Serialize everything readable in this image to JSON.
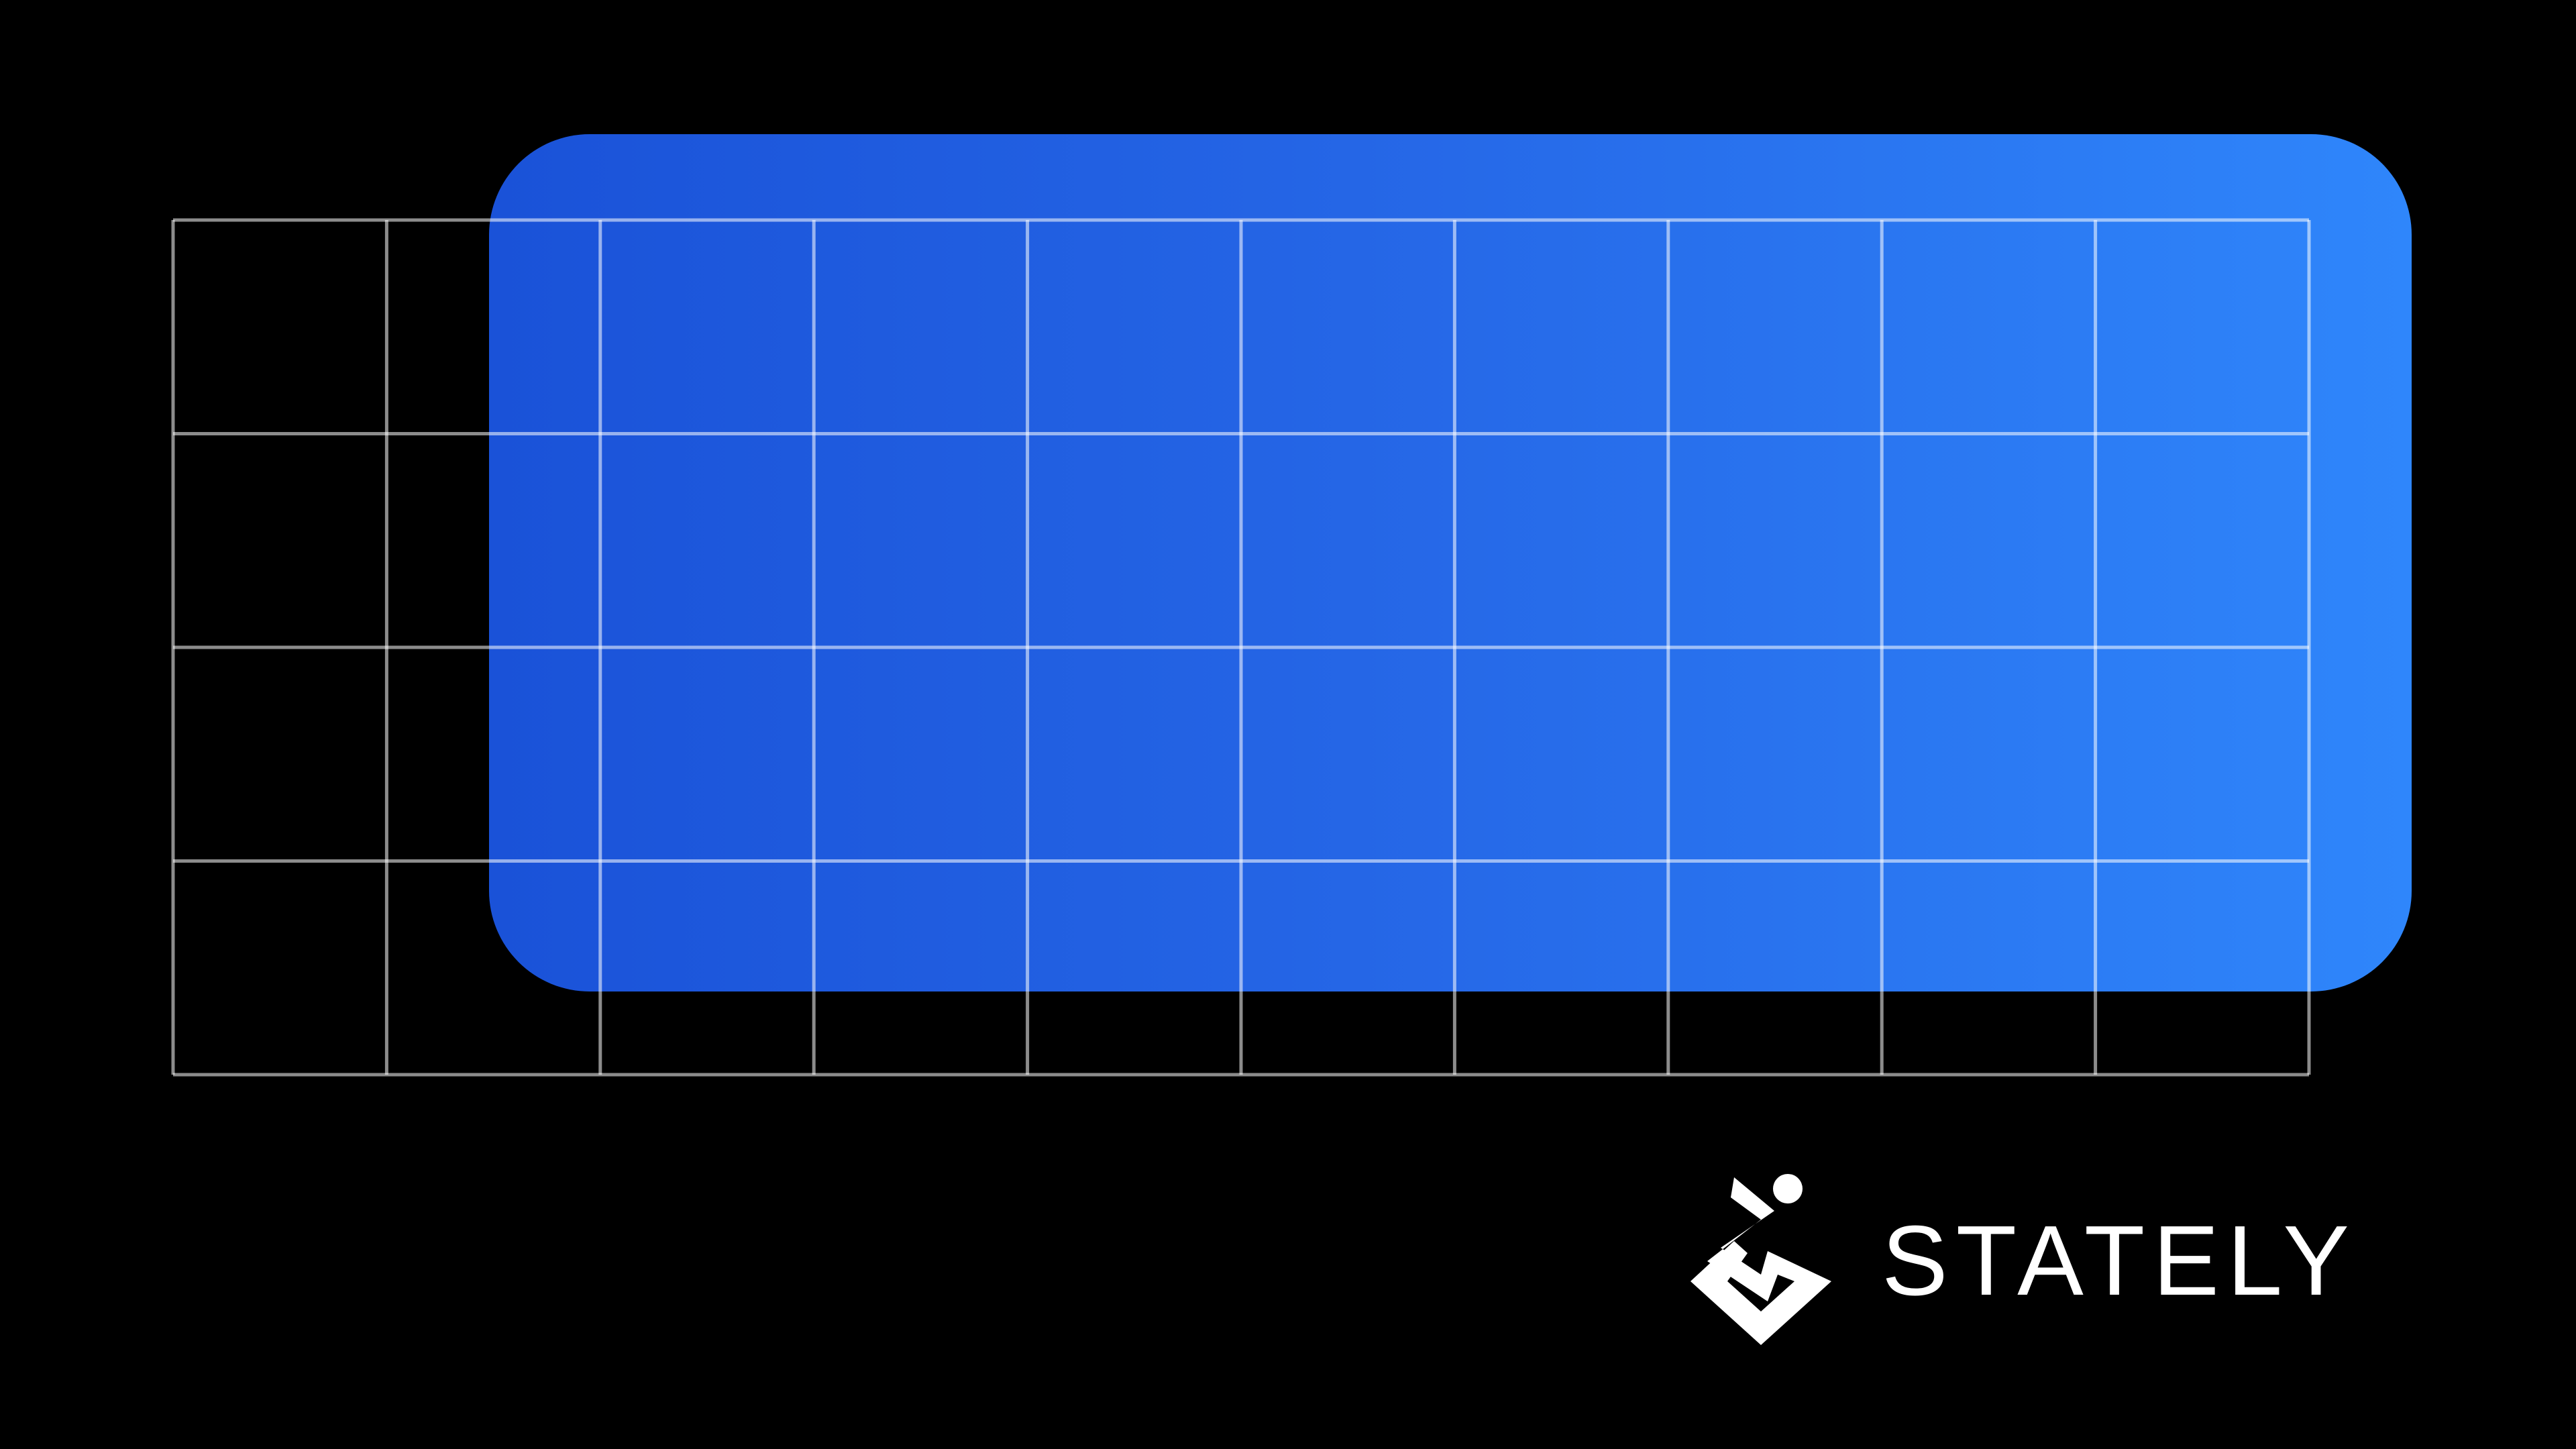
{
  "brand": {
    "name": "STATELY",
    "logo_icon": "stately-logo-icon"
  },
  "colors": {
    "background": "#000000",
    "card_gradient_start": "#1a52d8",
    "card_gradient_end": "#2f86fb",
    "grid_line": "#ffffff",
    "brand_text": "#ffffff"
  },
  "grid": {
    "columns": 10,
    "rows": 4
  }
}
